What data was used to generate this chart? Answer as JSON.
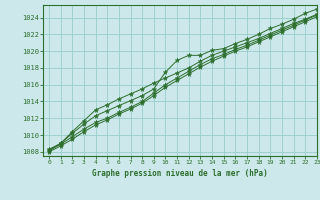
{
  "title": "Graphe pression niveau de la mer (hPa)",
  "bg_color": "#cce8ea",
  "grid_color": "#99cccc",
  "line_color": "#2d6e2d",
  "marker_color": "#2d6e2d",
  "xlim": [
    -0.5,
    23
  ],
  "ylim": [
    1007.5,
    1025.5
  ],
  "yticks": [
    1008,
    1010,
    1012,
    1014,
    1016,
    1018,
    1020,
    1022,
    1024
  ],
  "xticks": [
    0,
    1,
    2,
    3,
    4,
    5,
    6,
    7,
    8,
    9,
    10,
    11,
    12,
    13,
    14,
    15,
    16,
    17,
    18,
    19,
    20,
    21,
    22,
    23
  ],
  "series": [
    [
      1008.3,
      1009.0,
      1010.2,
      1011.3,
      1012.3,
      1012.9,
      1013.5,
      1014.1,
      1014.7,
      1015.5,
      1017.5,
      1018.9,
      1019.5,
      1019.5,
      1020.1,
      1020.3,
      1020.9,
      1021.4,
      1022.0,
      1022.7,
      1023.2,
      1023.8,
      1024.5,
      1025.0
    ],
    [
      1008.2,
      1008.9,
      1009.8,
      1010.7,
      1011.5,
      1012.0,
      1012.7,
      1013.3,
      1014.0,
      1015.0,
      1016.0,
      1016.8,
      1017.6,
      1018.4,
      1019.1,
      1019.6,
      1020.2,
      1020.7,
      1021.3,
      1021.9,
      1022.5,
      1023.1,
      1023.7,
      1024.3
    ],
    [
      1008.0,
      1008.7,
      1009.5,
      1010.4,
      1011.2,
      1011.8,
      1012.5,
      1013.1,
      1013.8,
      1014.7,
      1015.7,
      1016.5,
      1017.3,
      1018.1,
      1018.8,
      1019.4,
      1020.0,
      1020.5,
      1021.1,
      1021.7,
      1022.3,
      1022.9,
      1023.5,
      1024.1
    ],
    [
      1008.1,
      1009.0,
      1010.4,
      1011.7,
      1013.0,
      1013.6,
      1014.3,
      1014.9,
      1015.5,
      1016.2,
      1016.8,
      1017.4,
      1018.0,
      1018.8,
      1019.5,
      1020.0,
      1020.5,
      1021.0,
      1021.5,
      1022.1,
      1022.7,
      1023.3,
      1023.8,
      1024.4
    ]
  ]
}
